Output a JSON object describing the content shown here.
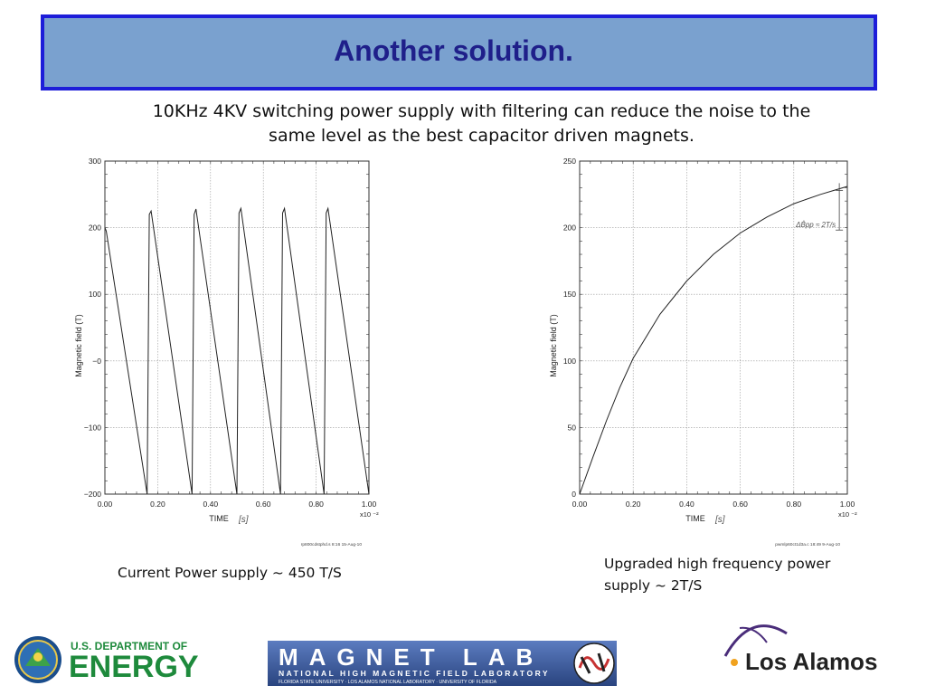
{
  "slide": {
    "title": "Another solution.",
    "subtitle": "10KHz 4KV switching power supply with filtering can reduce the noise to the same level as the best capacitor driven magnets.",
    "caption_left": "Current Power supply ~ 450 T/S",
    "caption_right": "Upgraded high frequency power supply ~ 2T/S"
  },
  "logos": {
    "doe_line1": "U.S. DEPARTMENT OF",
    "doe_line2": "ENERGY",
    "magnet_main": "MAGNET LAB",
    "magnet_sub1": "NATIONAL HIGH MAGNETIC FIELD LABORATORY",
    "magnet_sub2": "FLORIDA STATE UNIVERSITY · LOS ALAMOS NATIONAL LABORATORY · UNIVERSITY OF FLORIDA",
    "lanl": "Los Alamos"
  },
  "colors": {
    "title_bg": "#7aa1cf",
    "title_border": "#1d1dd9",
    "title_text": "#1f1f8a",
    "doe_green": "#1e8a3c",
    "magnet_blue": "#2a4fa0",
    "lanl_purple": "#4a2d7a"
  },
  "chart_data": [
    {
      "type": "line",
      "ylabel": "Magnetic field (T)",
      "xlabel": "TIME",
      "xlabel_handwritten": "[s]",
      "x_multiplier": "x10 ⁻²",
      "xlim": [
        0,
        1.0
      ],
      "ylim": [
        -200,
        300
      ],
      "xticks": [
        0.0,
        0.2,
        0.4,
        0.6,
        0.8,
        1.0
      ],
      "xtick_labels": [
        "0.00",
        "0.20",
        "0.40",
        "0.60",
        "0.80",
        "1.00"
      ],
      "yticks": [
        -200,
        -100,
        0,
        100,
        200,
        300
      ],
      "ytick_labels": [
        "−200",
        "−100",
        "−0",
        "100",
        "200",
        "300"
      ],
      "grid": true,
      "series": [
        {
          "x": [
            0.0,
            0.005,
            0.16,
            0.168,
            0.175,
            0.33,
            0.338,
            0.345,
            0.5,
            0.508,
            0.515,
            0.665,
            0.673,
            0.68,
            0.83,
            0.838,
            0.845,
            1.0
          ],
          "y": [
            200,
            195,
            -200,
            220,
            225,
            -200,
            220,
            228,
            -200,
            222,
            229,
            -200,
            222,
            229,
            -200,
            222,
            229,
            -200
          ]
        }
      ],
      "footer": "rp800cdstphd.s 8:16   15-Aug-10"
    },
    {
      "type": "line",
      "ylabel": "Magnetic field (T)",
      "xlabel": "TIME",
      "xlabel_handwritten": "[s]",
      "x_multiplier": "x10 ⁻²",
      "xlim": [
        0,
        1.0
      ],
      "ylim": [
        0,
        250
      ],
      "xticks": [
        0.0,
        0.2,
        0.4,
        0.6,
        0.8,
        1.0
      ],
      "xtick_labels": [
        "0.00",
        "0.20",
        "0.40",
        "0.60",
        "0.80",
        "1.00"
      ],
      "yticks": [
        0,
        50,
        100,
        150,
        200,
        250
      ],
      "ytick_labels": [
        "0",
        "50",
        "100",
        "150",
        "200",
        "250"
      ],
      "grid": true,
      "series": [
        {
          "x": [
            0.0,
            0.05,
            0.1,
            0.15,
            0.2,
            0.3,
            0.4,
            0.5,
            0.6,
            0.7,
            0.8,
            0.9,
            0.95,
            1.0
          ],
          "y": [
            0,
            28,
            55,
            80,
            102,
            135,
            160,
            180,
            196,
            208,
            218,
            225,
            228,
            231
          ]
        }
      ],
      "annotation": "ΔB̊pp ≈ 2T/s",
      "footer": "pwmlp60ct1d3a.c 18:49   9-Aug-10"
    }
  ]
}
